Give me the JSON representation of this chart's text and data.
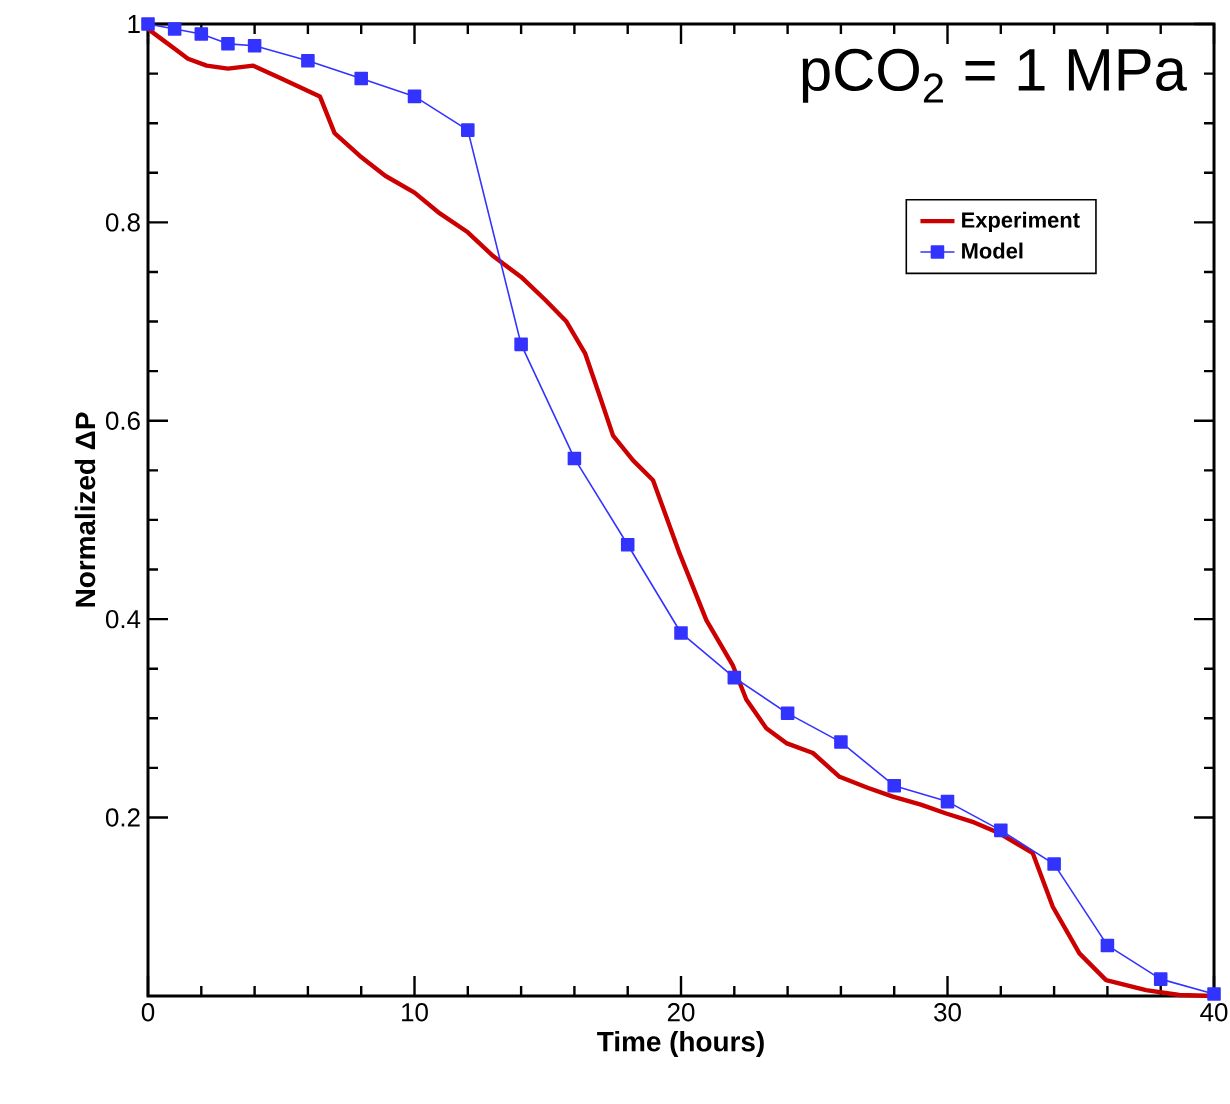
{
  "chart_data": {
    "type": "line",
    "annotations": [
      "pCO$_{2}$ = 1 MPa"
    ],
    "xlabel": "Time (hours)",
    "ylabel": "Normalized ΔP",
    "xlim": [
      0,
      40
    ],
    "ylim": [
      0.02,
      1
    ],
    "xticks": [
      0,
      10,
      20,
      30,
      40
    ],
    "yticks": [
      0.2,
      0.4,
      0.6,
      0.8,
      1
    ],
    "legend": "top right",
    "grid": false,
    "series": [
      {
        "name": "Experiment",
        "color": "#cc0000",
        "marker": "none",
        "line_style": "solid",
        "x": [
          0,
          0.5,
          1,
          1.5,
          2.2,
          3,
          3.95,
          5,
          6.45,
          7,
          7.95,
          8.9,
          10,
          10.95,
          12,
          12.95,
          14,
          14.9,
          15.7,
          16.4,
          16.95,
          17.45,
          18.2,
          18.95,
          19.95,
          20.95,
          21.95,
          22.45,
          23.2,
          23.95,
          24.95,
          25.95,
          27,
          27.95,
          29,
          29.95,
          31,
          31.95,
          33.2,
          33.95,
          34.95,
          35.95,
          37.45,
          38.7,
          40
        ],
        "values": [
          0.995,
          0.985,
          0.975,
          0.965,
          0.958,
          0.955,
          0.958,
          0.945,
          0.927,
          0.89,
          0.867,
          0.847,
          0.83,
          0.809,
          0.79,
          0.766,
          0.745,
          0.722,
          0.7,
          0.668,
          0.625,
          0.585,
          0.56,
          0.54,
          0.466,
          0.399,
          0.353,
          0.319,
          0.29,
          0.275,
          0.265,
          0.241,
          0.23,
          0.221,
          0.213,
          0.204,
          0.195,
          0.184,
          0.164,
          0.11,
          0.063,
          0.036,
          0.026,
          0.021,
          0.02
        ]
      },
      {
        "name": "Model",
        "color": "#3333ff",
        "marker": "square",
        "line_style": "solid",
        "x": [
          0,
          1,
          2,
          3,
          4,
          6,
          8,
          10,
          12,
          14,
          16,
          18,
          20,
          22,
          24,
          26,
          28,
          30,
          32,
          34,
          36,
          38,
          40
        ],
        "values": [
          1.0,
          0.995,
          0.99,
          0.98,
          0.978,
          0.963,
          0.945,
          0.927,
          0.893,
          0.677,
          0.562,
          0.475,
          0.386,
          0.341,
          0.305,
          0.276,
          0.232,
          0.216,
          0.187,
          0.153,
          0.071,
          0.037,
          0.022
        ]
      }
    ]
  }
}
